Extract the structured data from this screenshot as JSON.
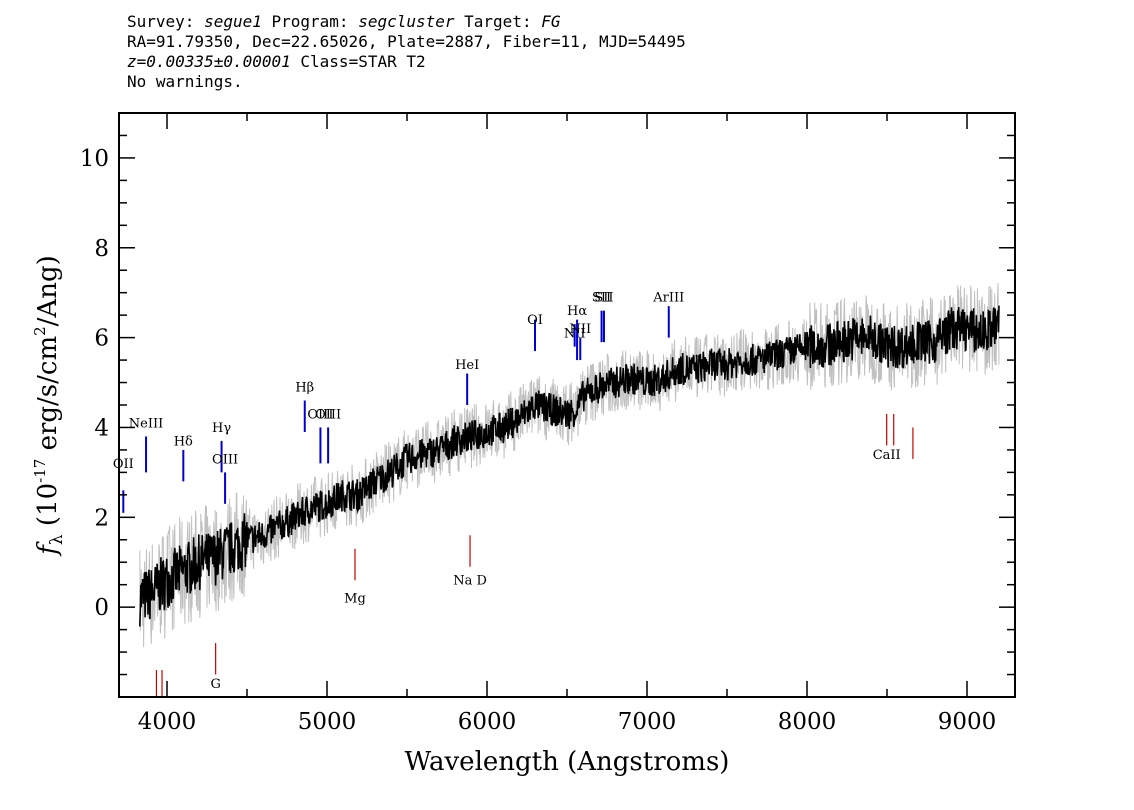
{
  "header": {
    "line1": {
      "survey_label": "Survey: ",
      "survey": "segue1",
      "program_label": " Program: ",
      "program": "segcluster",
      "target_label": " Target: ",
      "target": "FG"
    },
    "line2": "RA=91.79350, Dec=22.65026, Plate=2887, Fiber=11, MJD=54495",
    "line3": {
      "z": "z=0.00335±0.00001",
      "class": " Class=STAR T2"
    },
    "line4": "No warnings."
  },
  "chart_data": {
    "type": "line",
    "title": "",
    "xlabel": "Wavelength (Angstroms)",
    "ylabel": "f_λ (10^-17 erg/s/cm^2/Ang)",
    "xlim": [
      3700,
      9300
    ],
    "ylim": [
      -2,
      11
    ],
    "xticks": [
      4000,
      5000,
      6000,
      7000,
      8000,
      9000
    ],
    "yticks": [
      0,
      2,
      4,
      6,
      8,
      10
    ],
    "colors": {
      "flux": "#000000",
      "error": "#c0c0c0",
      "emission": "#0000cc",
      "absorption": "#cc0000"
    },
    "series": [
      {
        "name": "flux",
        "x": [
          3830,
          3900,
          4000,
          4100,
          4200,
          4300,
          4400,
          4500,
          4600,
          4700,
          4800,
          4900,
          5000,
          5100,
          5200,
          5300,
          5400,
          5500,
          5600,
          5700,
          5800,
          5900,
          6000,
          6100,
          6200,
          6300,
          6400,
          6500,
          6560,
          6600,
          6700,
          6800,
          6900,
          7000,
          7100,
          7200,
          7300,
          7400,
          7500,
          7600,
          7700,
          7800,
          7900,
          8000,
          8100,
          8200,
          8300,
          8400,
          8500,
          8600,
          8700,
          8800,
          8900,
          9000,
          9100,
          9200
        ],
        "y": [
          0.2,
          0.3,
          0.6,
          0.8,
          1.0,
          1.1,
          1.3,
          1.5,
          1.6,
          1.8,
          2.0,
          2.2,
          2.3,
          2.5,
          2.5,
          2.8,
          3.0,
          3.3,
          3.4,
          3.5,
          3.7,
          3.8,
          3.9,
          4.0,
          4.2,
          4.5,
          4.4,
          4.3,
          4.4,
          4.7,
          4.9,
          5.0,
          5.1,
          5.0,
          5.1,
          5.3,
          5.3,
          5.4,
          5.4,
          5.5,
          5.5,
          5.6,
          5.7,
          5.8,
          5.8,
          5.9,
          6.0,
          6.0,
          5.8,
          5.8,
          5.9,
          5.9,
          6.2,
          6.2,
          6.1,
          6.3
        ]
      }
    ],
    "lines": [
      {
        "label": "OII",
        "x": 3727,
        "type": "emission",
        "y": [
          2.1,
          2.6
        ],
        "label_y": 3.1
      },
      {
        "label": "NeIII",
        "x": 3869,
        "type": "emission",
        "y": [
          3.0,
          3.8
        ],
        "label_y": 4.0
      },
      {
        "label": "Hδ",
        "x": 4102,
        "type": "emission",
        "y": [
          2.8,
          3.5
        ],
        "label_y": 3.6
      },
      {
        "label": "Hγ",
        "x": 4341,
        "type": "emission",
        "y": [
          3.0,
          3.7
        ],
        "label_y": 3.9
      },
      {
        "label": "OIII",
        "x": 4363,
        "type": "emission",
        "y": [
          2.3,
          3.0
        ],
        "label_y": 3.2
      },
      {
        "label": "Hβ",
        "x": 4861,
        "type": "emission",
        "y": [
          3.9,
          4.6
        ],
        "label_y": 4.8
      },
      {
        "label": "OIII",
        "x": 4959,
        "type": "emission",
        "y": [
          3.2,
          4.0
        ],
        "label_y": 4.2
      },
      {
        "label": "OIII",
        "x": 5007,
        "type": "emission",
        "y": [
          3.2,
          4.0
        ],
        "label_y": 4.2
      },
      {
        "label": "HeI",
        "x": 5876,
        "type": "emission",
        "y": [
          4.5,
          5.2
        ],
        "label_y": 5.3
      },
      {
        "label": "OI",
        "x": 6300,
        "type": "emission",
        "y": [
          5.7,
          6.4
        ],
        "label_y": 6.3
      },
      {
        "label": "NII",
        "x": 6548,
        "type": "emission",
        "y": [
          5.8,
          6.3
        ],
        "label_y": 6.0
      },
      {
        "label": "Hα",
        "x": 6563,
        "type": "emission",
        "y": [
          5.5,
          6.4
        ],
        "label_y": 6.5
      },
      {
        "label": "NII",
        "x": 6583,
        "type": "emission",
        "y": [
          5.5,
          6.0
        ],
        "label_y": 6.1
      },
      {
        "label": "SII",
        "x": 6716,
        "type": "emission",
        "y": [
          5.9,
          6.6
        ],
        "label_y": 6.8
      },
      {
        "label": "SII",
        "x": 6731,
        "type": "emission",
        "y": [
          5.9,
          6.6
        ],
        "label_y": 6.8
      },
      {
        "label": "ArIII",
        "x": 7136,
        "type": "emission",
        "y": [
          6.0,
          6.7
        ],
        "label_y": 6.8
      },
      {
        "label": "G",
        "x": 4304,
        "type": "absorption",
        "y": [
          -1.5,
          -0.8
        ],
        "label_y": -1.8
      },
      {
        "label": "Mg",
        "x": 5175,
        "type": "absorption",
        "y": [
          0.6,
          1.3
        ],
        "label_y": 0.1
      },
      {
        "label": "Na D",
        "x": 5894,
        "type": "absorption",
        "y": [
          0.9,
          1.6
        ],
        "label_y": 0.5
      },
      {
        "label": "CaII",
        "x": 8498,
        "type": "absorption",
        "y": [
          3.6,
          4.3
        ],
        "label_y": 3.3
      },
      {
        "label": "CaII",
        "x": 8542,
        "type": "absorption",
        "y": [
          3.6,
          4.3
        ],
        "label_y": null
      },
      {
        "label": "CaII",
        "x": 8662,
        "type": "absorption",
        "y": [
          3.3,
          4.0
        ],
        "label_y": null
      },
      {
        "label": "",
        "x": 3934,
        "type": "absorption",
        "y": [
          -2.0,
          -1.4
        ],
        "label_y": null
      },
      {
        "label": "",
        "x": 3969,
        "type": "absorption",
        "y": [
          -2.0,
          -1.4
        ],
        "label_y": null
      }
    ]
  }
}
